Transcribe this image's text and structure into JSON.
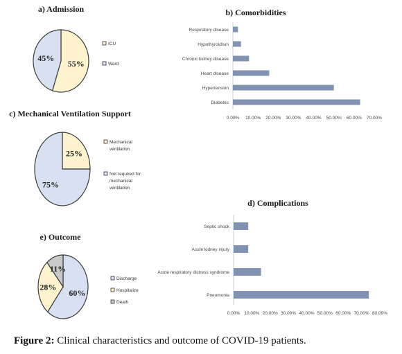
{
  "figure_label": "Figure 2:",
  "caption": "Clinical characteristics and outcome of COVID-19 patients.",
  "colors": {
    "light_yellow": "#fdf4cf",
    "light_blue": "#d8e1f2",
    "gray": "#c9c9c9",
    "bar": "#8193b2",
    "outline": "#3a3a3a"
  },
  "chart_data": [
    {
      "id": "admission",
      "type": "pie",
      "title": "a) Admission",
      "slices": [
        {
          "label": "ICU",
          "value": 55,
          "display": "55%",
          "color": "#fdf4cf"
        },
        {
          "label": "Ward",
          "value": 45,
          "display": "45%",
          "color": "#d8e1f2"
        }
      ]
    },
    {
      "id": "comorbidities",
      "type": "bar",
      "orientation": "horizontal",
      "title": "b) Comorbidities",
      "categories": [
        "Respiratory disease",
        "Hypothyroidism",
        "Chronic kidney disease",
        "Heart disease",
        "Hypertension",
        "Diabetes"
      ],
      "values": [
        2.5,
        4.0,
        8.0,
        18.0,
        50.0,
        63.0
      ],
      "xlim": [
        0,
        70
      ],
      "ticks": [
        "0.00%",
        "10.00%",
        "20.00%",
        "30.00%",
        "40.00%",
        "50.00%",
        "60.00%",
        "70.00%"
      ]
    },
    {
      "id": "ventilation",
      "type": "pie",
      "title": "c) Mechanical Ventilation Support",
      "slices": [
        {
          "label": "Mechanical ventilation",
          "value": 25,
          "display": "25%",
          "color": "#fdf4cf"
        },
        {
          "label": "Not required for mechanical ventilation",
          "value": 75,
          "display": "75%",
          "color": "#d8e1f2"
        }
      ]
    },
    {
      "id": "complications",
      "type": "bar",
      "orientation": "horizontal",
      "title": "d) Complications",
      "categories": [
        "Septic shock",
        "Acute kidney injury",
        "Acute respiratory distress syndrome",
        "Pneumonia"
      ],
      "values": [
        8.0,
        8.0,
        15.0,
        74.0
      ],
      "xlim": [
        0,
        80
      ],
      "ticks": [
        "0.00%",
        "10.00%",
        "20.00%",
        "30.00%",
        "40.00%",
        "50.00%",
        "60.00%",
        "70.00%",
        "80.00%"
      ]
    },
    {
      "id": "outcome",
      "type": "pie",
      "title": "e) Outcome",
      "slices": [
        {
          "label": "Discharge",
          "value": 60,
          "display": "60%",
          "color": "#d8e1f2"
        },
        {
          "label": "Hospitalize",
          "value": 28,
          "display": "28%",
          "color": "#fdf4cf"
        },
        {
          "label": "Death",
          "value": 11,
          "display": "11%",
          "color": "#c9c9c9"
        }
      ]
    }
  ]
}
